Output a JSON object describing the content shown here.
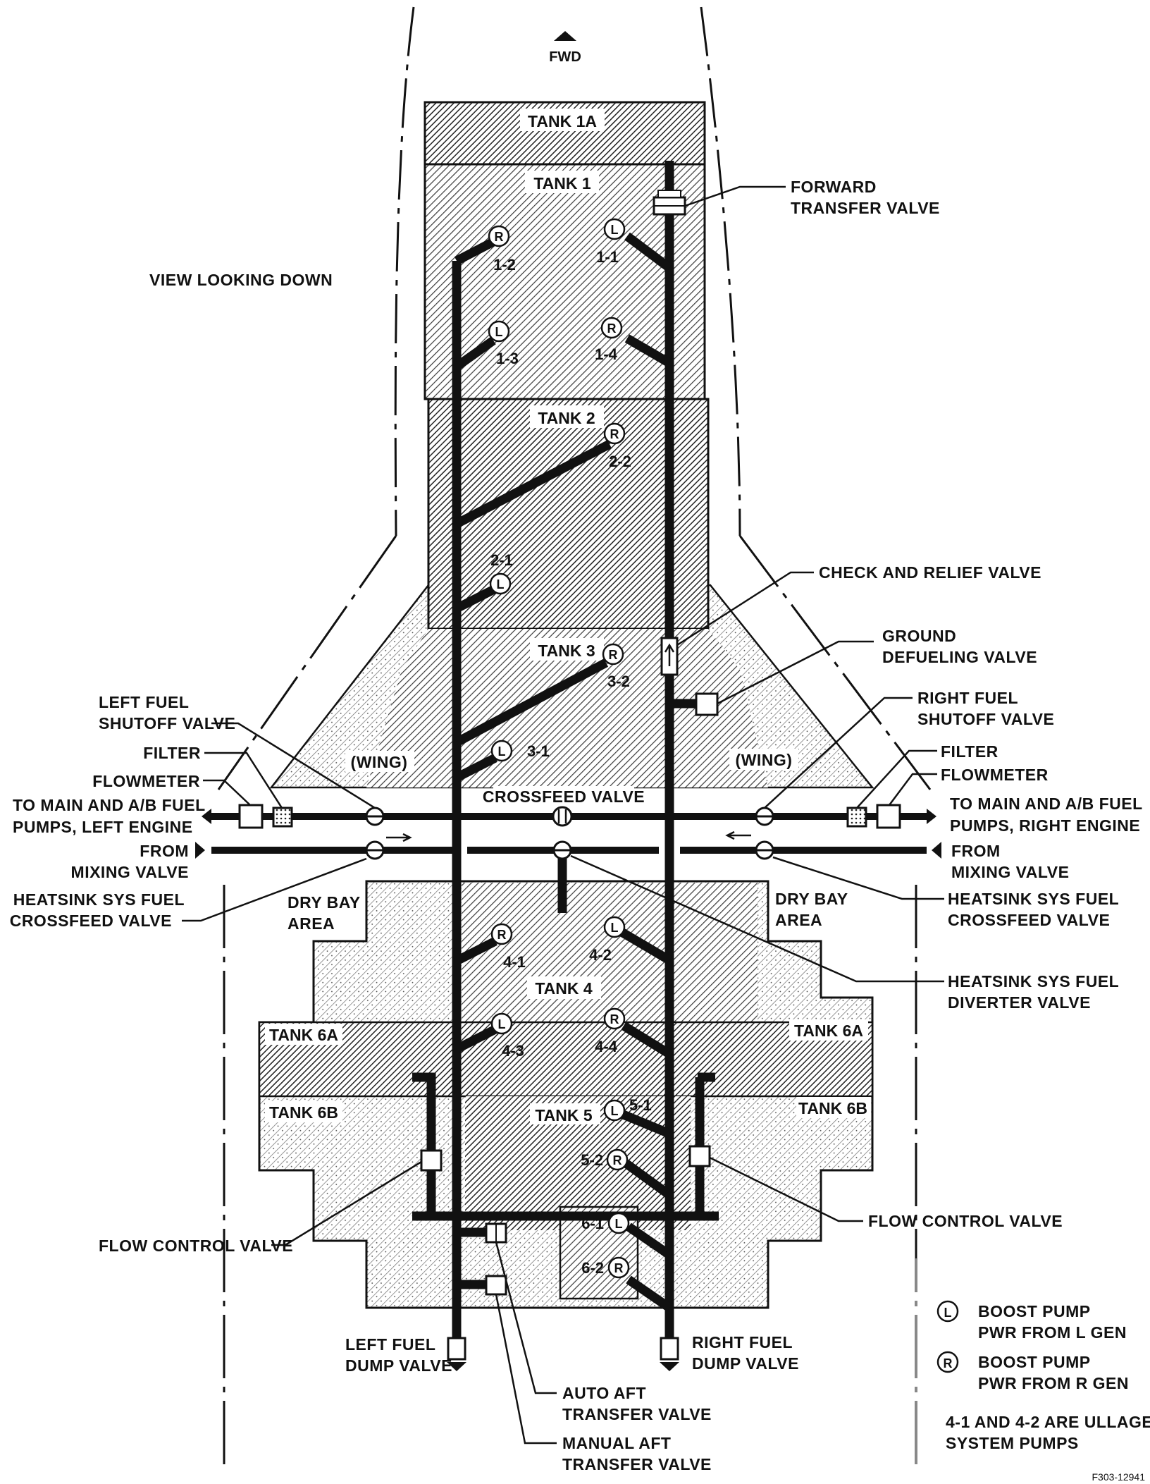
{
  "header": {
    "fwd": "FWD",
    "view": "VIEW LOOKING DOWN"
  },
  "tanks": {
    "t1a": "TANK 1A",
    "t1": "TANK 1",
    "t2": "TANK 2",
    "t3": "TANK 3",
    "t4": "TANK 4",
    "t5": "TANK 5",
    "t6a_left": "TANK 6A",
    "t6a_right": "TANK 6A",
    "t6b_left": "TANK 6B",
    "t6b_right": "TANK 6B"
  },
  "areas": {
    "wing_left": "(WING)",
    "wing_right": "(WING)",
    "drybay_left": [
      "DRY BAY",
      "AREA"
    ],
    "drybay_right": [
      "DRY BAY",
      "AREA"
    ]
  },
  "pumps": [
    {
      "id": "1-1",
      "power": "L"
    },
    {
      "id": "1-2",
      "power": "R"
    },
    {
      "id": "1-3",
      "power": "L"
    },
    {
      "id": "1-4",
      "power": "R"
    },
    {
      "id": "2-1",
      "power": "L"
    },
    {
      "id": "2-2",
      "power": "R"
    },
    {
      "id": "3-1",
      "power": "L"
    },
    {
      "id": "3-2",
      "power": "R"
    },
    {
      "id": "4-1",
      "power": "R"
    },
    {
      "id": "4-2",
      "power": "L"
    },
    {
      "id": "4-3",
      "power": "L"
    },
    {
      "id": "4-4",
      "power": "R"
    },
    {
      "id": "5-1",
      "power": "L"
    },
    {
      "id": "5-2",
      "power": "R"
    },
    {
      "id": "6-1",
      "power": "L"
    },
    {
      "id": "6-2",
      "power": "R"
    }
  ],
  "labels": {
    "forward_transfer_valve": [
      "FORWARD",
      "TRANSFER VALVE"
    ],
    "check_relief_valve": [
      "CHECK AND RELIEF VALVE"
    ],
    "ground_defueling_valve": [
      "GROUND",
      "DEFUELING VALVE"
    ],
    "left_fuel_shutoff_valve": [
      "LEFT FUEL",
      "SHUTOFF VALVE"
    ],
    "right_fuel_shutoff_valve": [
      "RIGHT FUEL",
      "SHUTOFF VALVE"
    ],
    "filter_left": [
      "FILTER"
    ],
    "flowmeter_left": [
      "FLOWMETER"
    ],
    "filter_right": [
      "FILTER"
    ],
    "flowmeter_right": [
      "FLOWMETER"
    ],
    "to_main_left": [
      "TO MAIN AND A/B FUEL",
      "PUMPS, LEFT ENGINE"
    ],
    "to_main_right": [
      "TO MAIN AND A/B FUEL",
      "PUMPS, RIGHT ENGINE"
    ],
    "crossfeed_valve": [
      "CROSSFEED VALVE"
    ],
    "from_mixing_left": [
      "FROM",
      "MIXING VALVE"
    ],
    "from_mixing_right": [
      "FROM",
      "MIXING VALVE"
    ],
    "heatsink_crossfeed_left": [
      "HEATSINK SYS FUEL",
      "CROSSFEED VALVE"
    ],
    "heatsink_crossfeed_right": [
      "HEATSINK SYS FUEL",
      "CROSSFEED VALVE"
    ],
    "heatsink_diverter": [
      "HEATSINK SYS FUEL",
      "DIVERTER VALVE"
    ],
    "flow_control_left": [
      "FLOW CONTROL VALVE"
    ],
    "flow_control_right": [
      "FLOW CONTROL VALVE"
    ],
    "left_fuel_dump_valve": [
      "LEFT FUEL",
      "DUMP VALVE"
    ],
    "right_fuel_dump_valve": [
      "RIGHT FUEL",
      "DUMP VALVE"
    ],
    "auto_aft_transfer_valve": [
      "AUTO AFT",
      "TRANSFER VALVE"
    ],
    "manual_aft_transfer_valve": [
      "MANUAL AFT",
      "TRANSFER VALVE"
    ]
  },
  "legend": {
    "l_symbol": "L",
    "l_text": [
      "BOOST PUMP",
      "PWR FROM L GEN"
    ],
    "r_symbol": "R",
    "r_text": [
      "BOOST PUMP",
      "PWR FROM R GEN"
    ],
    "note": [
      "4-1 AND 4-2 ARE ULLAGE",
      "SYSTEM PUMPS"
    ]
  },
  "figure_id": "F303-12941"
}
